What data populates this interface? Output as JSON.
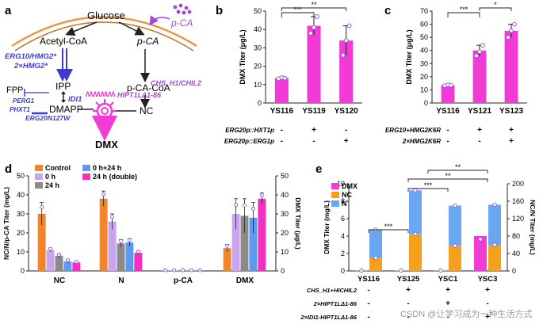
{
  "colors": {
    "magenta": "#f23ad6",
    "orange": "#f0852d",
    "lilac": "#c9a4ef",
    "gray": "#8a8a8a",
    "blue": "#5b9af0",
    "pink": "#f52fc2",
    "nc_orange": "#f5a01c",
    "n_blue": "#6aa6f2",
    "pathway_blue": "#3b3bd4",
    "pathway_purple": "#a24ad6"
  },
  "panel_a": {
    "letter": "a",
    "glucose": "Glucose",
    "pca_top": "p-CA",
    "acetyl": "Acetyl-CoA",
    "pca": "p-CA",
    "erg10": "ERG10/HMG2*",
    "hmg2": "2×HMG2*",
    "ipp": "IPP",
    "idi1": "IDI1",
    "hipt": "HIPT1LΔ1-86",
    "pca_coa": "p-CA-CoA",
    "chs": "CHS_H1/CHIL2",
    "fpp": "FPP",
    "perg1": "PERG1",
    "phxt1": "PHXT1",
    "erg20": "ERG20N127W",
    "dmapp": "DMAPP",
    "nc": "NC",
    "dmx": "DMX"
  },
  "chart_data": [
    {
      "panel": "b",
      "type": "bar",
      "ylabel": "DMX Titer (μg/L)",
      "ylim": [
        0,
        50
      ],
      "yticks": [
        0,
        10,
        20,
        30,
        40,
        50
      ],
      "categories": [
        "YS116",
        "YS119",
        "YS120"
      ],
      "values": [
        13.5,
        42,
        34
      ],
      "errors": [
        0.6,
        5,
        8
      ],
      "points": [
        [
          13.2,
          13.8,
          13.5
        ],
        [
          38,
          41,
          47
        ],
        [
          26,
          34,
          42
        ]
      ],
      "significance": [
        {
          "from": 0,
          "to": 1,
          "label": "***"
        },
        {
          "from": 0,
          "to": 2,
          "label": "**"
        }
      ],
      "factor_rows": [
        {
          "label": "ERG20p::HXT1p",
          "values": [
            "-",
            "+",
            "-"
          ]
        },
        {
          "label": "ERG20p::ERG1p",
          "values": [
            "-",
            "-",
            "+"
          ]
        }
      ]
    },
    {
      "panel": "c",
      "type": "bar",
      "ylabel": "DMX Titer (μg/L)",
      "ylim": [
        0,
        70
      ],
      "yticks": [
        0,
        10,
        20,
        30,
        40,
        50,
        60,
        70
      ],
      "categories": [
        "YS116",
        "YS121",
        "YS123"
      ],
      "values": [
        13.5,
        40,
        55
      ],
      "errors": [
        0.6,
        4,
        5
      ],
      "points": [
        [
          13.2,
          13.8,
          13.5
        ],
        [
          36,
          39,
          44
        ],
        [
          50,
          55,
          60
        ]
      ],
      "significance": [
        {
          "from": 0,
          "to": 1,
          "label": "***"
        },
        {
          "from": 1,
          "to": 2,
          "label": "*"
        }
      ],
      "factor_rows": [
        {
          "label": "ERG10+HMG2K6R",
          "values": [
            "-",
            "+",
            "+"
          ]
        },
        {
          "label": "2×HMG2K6R",
          "values": [
            "-",
            "-",
            "+"
          ]
        }
      ]
    },
    {
      "panel": "d",
      "type": "bar",
      "ylabel": "NC/N/p-CA Titer (mg/L)",
      "y2label": "DMX Titer (μg/L)",
      "ylim": [
        0,
        50
      ],
      "yticks": [
        0,
        10,
        20,
        30,
        40,
        50
      ],
      "y2lim": [
        0,
        50
      ],
      "y2ticks": [
        0,
        10,
        20,
        30,
        40,
        50
      ],
      "groups": [
        "NC",
        "N",
        "p-CA",
        "DMX"
      ],
      "legend": [
        "Control",
        "0 h",
        "24 h",
        "0 h+24 h",
        "24 h (double)"
      ],
      "series": [
        {
          "name": "Control",
          "values": [
            30,
            38,
            0.3,
            12
          ],
          "errors": [
            6,
            4,
            0.1,
            2
          ]
        },
        {
          "name": "0 h",
          "values": [
            11,
            26,
            0.3,
            30
          ],
          "errors": [
            1,
            4,
            0.1,
            8
          ]
        },
        {
          "name": "24 h",
          "values": [
            8,
            14.5,
            0.3,
            29
          ],
          "errors": [
            1,
            2,
            0.1,
            9
          ]
        },
        {
          "name": "0 h+24 h",
          "values": [
            5,
            15,
            0.3,
            28
          ],
          "errors": [
            1,
            2,
            0.1,
            8
          ]
        },
        {
          "name": "24 h (double)",
          "values": [
            4.5,
            9.5,
            0.3,
            38
          ],
          "errors": [
            0.5,
            1,
            0.1,
            3
          ]
        }
      ]
    },
    {
      "panel": "e",
      "type": "bar",
      "ylabel": "DMX Titer (mg/L)",
      "y2label": "NC/N Titer (mg/L)",
      "ylim": [
        0,
        10
      ],
      "yticks": [
        0,
        2,
        4,
        6,
        8,
        10
      ],
      "y2lim": [
        0,
        200
      ],
      "y2ticks": [
        0,
        40,
        80,
        120,
        160,
        200
      ],
      "categories": [
        "YS116",
        "YS125",
        "YSC1",
        "YSC3"
      ],
      "legend": [
        "DMX",
        "NC",
        "N"
      ],
      "DMX": [
        0.05,
        0.05,
        0.05,
        4.0
      ],
      "NC": [
        30,
        85,
        58,
        60
      ],
      "N": [
        95,
        185,
        150,
        152
      ],
      "significance": [
        {
          "from": 0,
          "to": 1,
          "label": "***"
        },
        {
          "from": 1,
          "to": 2,
          "label": "***"
        },
        {
          "from": 1,
          "to": 3,
          "label": "**"
        },
        {
          "from": 1.5,
          "to": 3,
          "label": "**"
        }
      ],
      "factor_rows": [
        {
          "label": "CHS_H1+HICHIL2",
          "values": [
            "-",
            "+",
            "+",
            "+"
          ]
        },
        {
          "label": "2×HIPT1LΔ1-86",
          "values": [
            "-",
            "-",
            "+",
            "-"
          ]
        },
        {
          "label": "2×IDI1-HIPT1LΔ1-86",
          "values": [
            "-",
            "-",
            "-",
            "+"
          ]
        }
      ]
    }
  ],
  "watermark": "CSDN @让学习成为一种生活方式"
}
